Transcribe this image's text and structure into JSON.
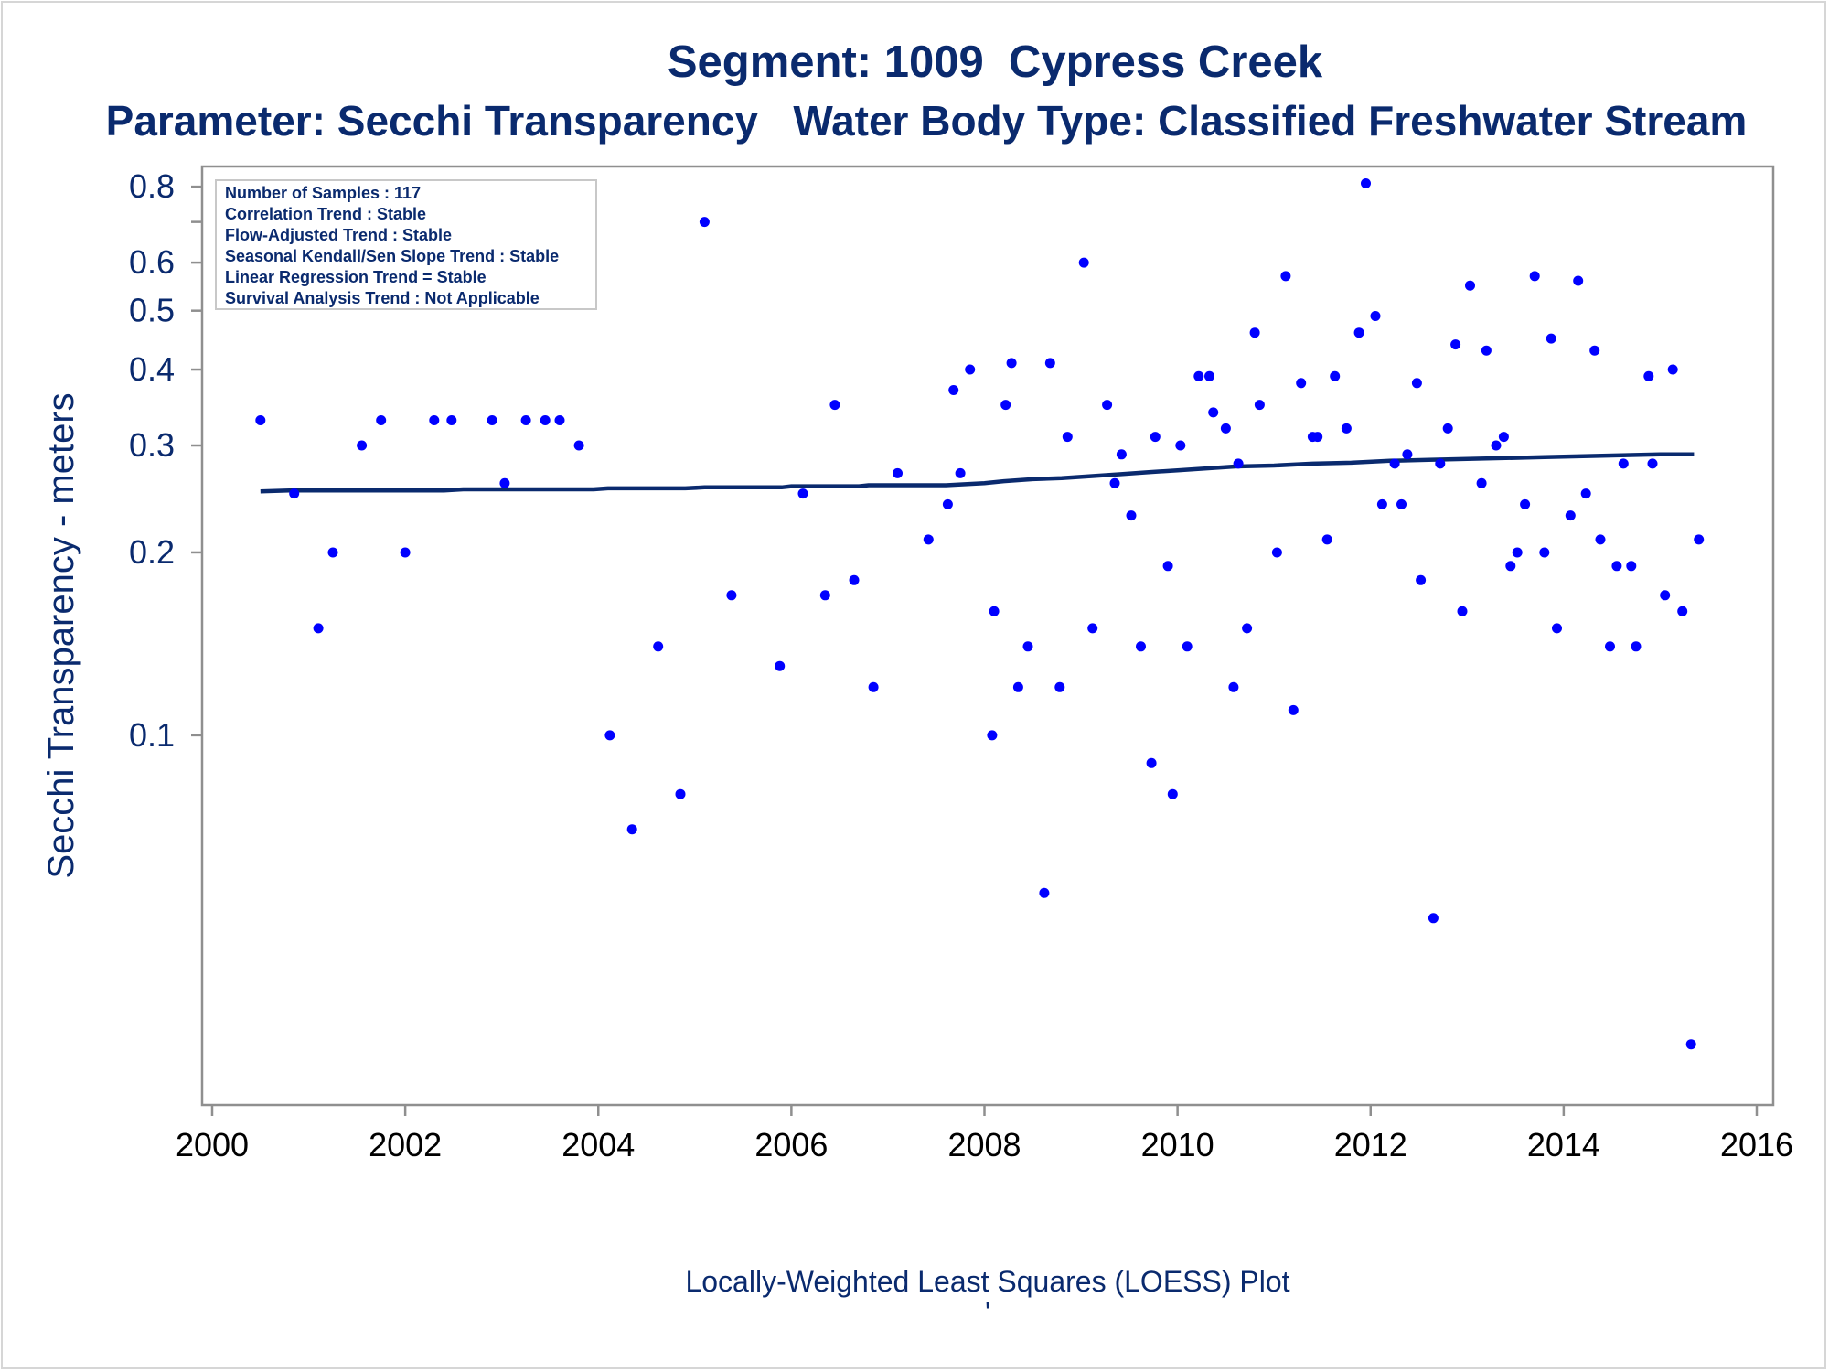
{
  "chart_data": {
    "type": "scatter",
    "title": "Segment: 1009  Cypress Creek",
    "subtitle": "Parameter: Secchi Transparency   Water Body Type: Classified Freshwater Stream",
    "ylabel": "Secchi Transparency - meters",
    "xlabel": "",
    "footnote": "Locally-Weighted Least Squares (LOESS) Plot",
    "footnote_mark": "'",
    "y_scale": "log",
    "x_range": [
      2000,
      2016
    ],
    "y_range": [
      0.0255,
      0.82
    ],
    "x_ticks": [
      {
        "value": 2000,
        "label": "2000"
      },
      {
        "value": 2002,
        "label": "2002"
      },
      {
        "value": 2004,
        "label": "2004"
      },
      {
        "value": 2006,
        "label": "2006"
      },
      {
        "value": 2008,
        "label": "2008"
      },
      {
        "value": 2010,
        "label": "2010"
      },
      {
        "value": 2012,
        "label": "2012"
      },
      {
        "value": 2014,
        "label": "2014"
      },
      {
        "value": 2016,
        "label": "2016"
      }
    ],
    "y_ticks": [
      {
        "value": 0.1,
        "label": "0.1"
      },
      {
        "value": 0.2,
        "label": "0.2"
      },
      {
        "value": 0.3,
        "label": "0.3"
      },
      {
        "value": 0.4,
        "label": "0.4"
      },
      {
        "value": 0.5,
        "label": "0.5"
      },
      {
        "value": 0.6,
        "label": "0.6"
      },
      {
        "value": 0.7,
        "label": ""
      },
      {
        "value": 0.8,
        "label": "0.8"
      }
    ],
    "grid": false,
    "stats_box": {
      "placement": "top-left",
      "lines": [
        "Number of Samples : 117",
        "Correlation Trend : Stable",
        "Flow-Adjusted Trend : Stable",
        "Seasonal Kendall/Sen Slope Trend : Stable",
        "Linear Regression Trend = Stable",
        "Survival Analysis Trend : Not Applicable"
      ]
    },
    "colors": {
      "points": "#0000ff",
      "trend": "#0a2a6e",
      "text": "#0a2a6e",
      "axis": "#8f8f8f"
    },
    "points": [
      [
        2000.5,
        0.33
      ],
      [
        2000.85,
        0.25
      ],
      [
        2001.1,
        0.15
      ],
      [
        2001.25,
        0.2
      ],
      [
        2001.55,
        0.3
      ],
      [
        2001.75,
        0.33
      ],
      [
        2002.0,
        0.2
      ],
      [
        2002.3,
        0.33
      ],
      [
        2002.48,
        0.33
      ],
      [
        2002.9,
        0.33
      ],
      [
        2003.03,
        0.26
      ],
      [
        2003.25,
        0.33
      ],
      [
        2003.45,
        0.33
      ],
      [
        2003.6,
        0.33
      ],
      [
        2003.8,
        0.3
      ],
      [
        2004.12,
        0.1
      ],
      [
        2004.35,
        0.07
      ],
      [
        2004.62,
        0.14
      ],
      [
        2004.85,
        0.08
      ],
      [
        2005.1,
        0.7
      ],
      [
        2005.38,
        0.17
      ],
      [
        2005.88,
        0.13
      ],
      [
        2006.12,
        0.25
      ],
      [
        2006.35,
        0.17
      ],
      [
        2006.45,
        0.35
      ],
      [
        2006.65,
        0.18
      ],
      [
        2006.85,
        0.12
      ],
      [
        2007.1,
        0.27
      ],
      [
        2007.42,
        0.21
      ],
      [
        2007.62,
        0.24
      ],
      [
        2007.68,
        0.37
      ],
      [
        2007.75,
        0.27
      ],
      [
        2007.85,
        0.4
      ],
      [
        2008.08,
        0.1
      ],
      [
        2008.1,
        0.16
      ],
      [
        2008.22,
        0.35
      ],
      [
        2008.28,
        0.41
      ],
      [
        2008.35,
        0.12
      ],
      [
        2008.45,
        0.14
      ],
      [
        2008.62,
        0.055
      ],
      [
        2008.68,
        0.41
      ],
      [
        2008.78,
        0.12
      ],
      [
        2008.86,
        0.31
      ],
      [
        2009.03,
        0.6
      ],
      [
        2009.12,
        0.15
      ],
      [
        2009.27,
        0.35
      ],
      [
        2009.35,
        0.26
      ],
      [
        2009.42,
        0.29
      ],
      [
        2009.52,
        0.23
      ],
      [
        2009.62,
        0.14
      ],
      [
        2009.73,
        0.09
      ],
      [
        2009.77,
        0.31
      ],
      [
        2009.9,
        0.19
      ],
      [
        2009.95,
        0.08
      ],
      [
        2010.03,
        0.3
      ],
      [
        2010.1,
        0.14
      ],
      [
        2010.22,
        0.39
      ],
      [
        2010.33,
        0.39
      ],
      [
        2010.37,
        0.34
      ],
      [
        2010.5,
        0.32
      ],
      [
        2010.58,
        0.12
      ],
      [
        2010.63,
        0.28
      ],
      [
        2010.72,
        0.15
      ],
      [
        2010.8,
        0.46
      ],
      [
        2010.85,
        0.35
      ],
      [
        2011.03,
        0.2
      ],
      [
        2011.12,
        0.57
      ],
      [
        2011.2,
        0.11
      ],
      [
        2011.28,
        0.38
      ],
      [
        2011.4,
        0.31
      ],
      [
        2011.45,
        0.31
      ],
      [
        2011.55,
        0.21
      ],
      [
        2011.63,
        0.39
      ],
      [
        2011.75,
        0.32
      ],
      [
        2011.88,
        0.46
      ],
      [
        2011.95,
        0.81
      ],
      [
        2012.05,
        0.49
      ],
      [
        2012.12,
        0.24
      ],
      [
        2012.25,
        0.28
      ],
      [
        2012.32,
        0.24
      ],
      [
        2012.38,
        0.29
      ],
      [
        2012.48,
        0.38
      ],
      [
        2012.52,
        0.18
      ],
      [
        2012.65,
        0.05
      ],
      [
        2012.72,
        0.28
      ],
      [
        2012.8,
        0.32
      ],
      [
        2012.88,
        0.44
      ],
      [
        2012.95,
        0.16
      ],
      [
        2013.03,
        0.55
      ],
      [
        2013.15,
        0.26
      ],
      [
        2013.2,
        0.43
      ],
      [
        2013.3,
        0.3
      ],
      [
        2013.38,
        0.31
      ],
      [
        2013.45,
        0.19
      ],
      [
        2013.52,
        0.2
      ],
      [
        2013.6,
        0.24
      ],
      [
        2013.7,
        0.57
      ],
      [
        2013.8,
        0.2
      ],
      [
        2013.87,
        0.45
      ],
      [
        2013.93,
        0.15
      ],
      [
        2014.07,
        0.23
      ],
      [
        2014.15,
        0.56
      ],
      [
        2014.23,
        0.25
      ],
      [
        2014.32,
        0.43
      ],
      [
        2014.38,
        0.21
      ],
      [
        2014.48,
        0.14
      ],
      [
        2014.55,
        0.19
      ],
      [
        2014.62,
        0.28
      ],
      [
        2014.7,
        0.19
      ],
      [
        2014.75,
        0.14
      ],
      [
        2014.88,
        0.39
      ],
      [
        2014.92,
        0.28
      ],
      [
        2015.05,
        0.17
      ],
      [
        2015.13,
        0.4
      ],
      [
        2015.23,
        0.16
      ],
      [
        2015.32,
        0.031
      ],
      [
        2015.4,
        0.21
      ]
    ],
    "loess": [
      [
        2000.5,
        0.252
      ],
      [
        2000.8,
        0.253
      ],
      [
        2001.5,
        0.253
      ],
      [
        2002.0,
        0.253
      ],
      [
        2002.4,
        0.253
      ],
      [
        2002.6,
        0.254
      ],
      [
        2003.0,
        0.254
      ],
      [
        2003.5,
        0.254
      ],
      [
        2003.95,
        0.254
      ],
      [
        2004.1,
        0.255
      ],
      [
        2004.5,
        0.255
      ],
      [
        2004.9,
        0.255
      ],
      [
        2005.1,
        0.256
      ],
      [
        2005.5,
        0.256
      ],
      [
        2005.9,
        0.256
      ],
      [
        2006.0,
        0.257
      ],
      [
        2006.4,
        0.257
      ],
      [
        2006.7,
        0.257
      ],
      [
        2006.8,
        0.258
      ],
      [
        2007.2,
        0.258
      ],
      [
        2007.6,
        0.258
      ],
      [
        2007.8,
        0.259
      ],
      [
        2008.0,
        0.26
      ],
      [
        2008.2,
        0.262
      ],
      [
        2008.5,
        0.264
      ],
      [
        2008.8,
        0.265
      ],
      [
        2009.1,
        0.267
      ],
      [
        2009.4,
        0.269
      ],
      [
        2009.7,
        0.271
      ],
      [
        2010.0,
        0.273
      ],
      [
        2010.3,
        0.275
      ],
      [
        2010.6,
        0.277
      ],
      [
        2011.0,
        0.278
      ],
      [
        2011.4,
        0.28
      ],
      [
        2011.8,
        0.281
      ],
      [
        2012.2,
        0.283
      ],
      [
        2012.6,
        0.284
      ],
      [
        2013.0,
        0.285
      ],
      [
        2013.4,
        0.286
      ],
      [
        2013.8,
        0.287
      ],
      [
        2014.2,
        0.288
      ],
      [
        2014.6,
        0.289
      ],
      [
        2015.0,
        0.29
      ],
      [
        2015.35,
        0.29
      ]
    ]
  }
}
